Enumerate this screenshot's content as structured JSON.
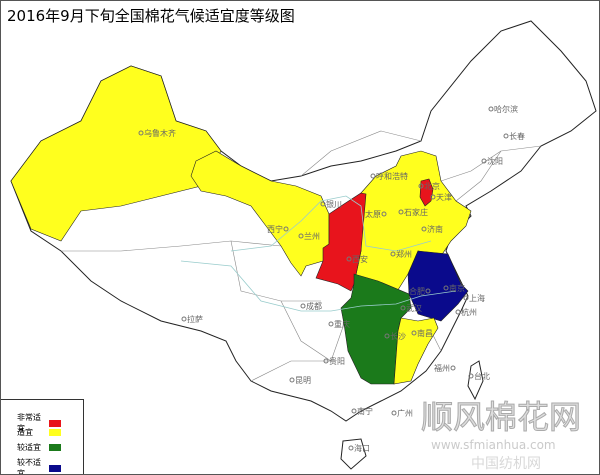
{
  "title": "2016年9月下旬全国棉花气候适宜度等级图",
  "legend": [
    {
      "label": "非常适宜",
      "color": "#e8141c"
    },
    {
      "label": "适宜",
      "color": "#ffff1e"
    },
    {
      "label": "较适宜",
      "color": "#1b7a1b"
    },
    {
      "label": "较不适宜",
      "color": "#0a0a8c"
    }
  ],
  "regions": [
    {
      "name": "新疆",
      "level": "适宜"
    },
    {
      "name": "甘肃-宁夏-内蒙古西部",
      "level": "适宜"
    },
    {
      "name": "陕西",
      "level": "非常适宜"
    },
    {
      "name": "北京",
      "level": "非常适宜"
    },
    {
      "name": "山西-河北-河南-山东",
      "level": "适宜"
    },
    {
      "name": "江苏-安徽",
      "level": "较不适宜"
    },
    {
      "name": "湖北-湖南",
      "level": "较适宜"
    },
    {
      "name": "江西",
      "level": "适宜"
    }
  ],
  "cities": [
    "乌鲁木齐",
    "哈尔滨",
    "长春",
    "沈阳",
    "呼和浩特",
    "北京",
    "天津",
    "石家庄",
    "太原",
    "济南",
    "银川",
    "西宁",
    "兰州",
    "郑州",
    "西安",
    "合肥",
    "南京",
    "上海",
    "武汉",
    "杭州",
    "成都",
    "重庆",
    "长沙",
    "南昌",
    "福州",
    "拉萨",
    "贵阳",
    "昆明",
    "台北",
    "南宁",
    "广州",
    "海口"
  ],
  "watermark": {
    "brand": "顺风棉花网",
    "url": "www.sfmianhua.com",
    "sub": "中国纺机网"
  }
}
